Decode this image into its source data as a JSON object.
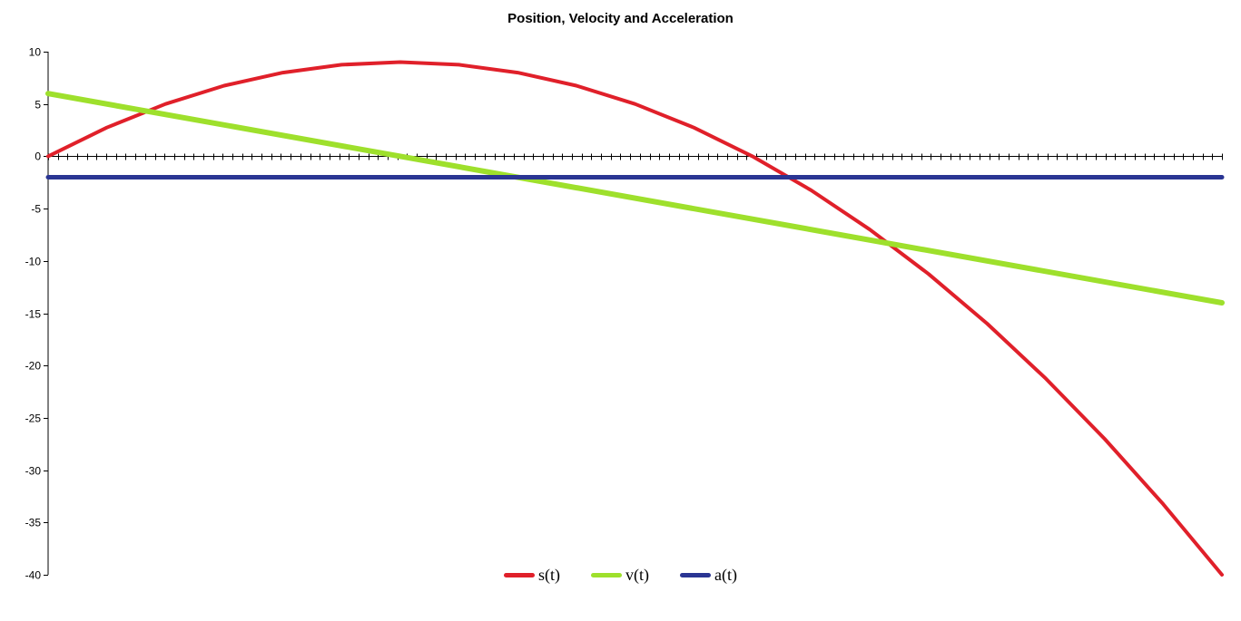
{
  "chart_data": {
    "type": "line",
    "title": "Position, Velocity and Acceleration",
    "xlabel": "",
    "ylabel": "",
    "ylim": [
      -40,
      10
    ],
    "yticks": [
      10,
      5,
      0,
      -5,
      -10,
      -15,
      -20,
      -25,
      -30,
      -35,
      -40
    ],
    "xlim": [
      0,
      10
    ],
    "grid": false,
    "legend_position": "bottom",
    "series": [
      {
        "name": "s(t)",
        "color": "#e0202a",
        "x": [
          0,
          0.5,
          1,
          1.5,
          2,
          2.5,
          3,
          3.5,
          4,
          4.5,
          5,
          5.5,
          6,
          6.5,
          7,
          7.5,
          8,
          8.5,
          9,
          9.5,
          10
        ],
        "y": [
          0,
          2.75,
          5,
          6.75,
          8,
          8.75,
          9,
          8.75,
          8,
          6.75,
          5,
          2.75,
          0,
          -3.25,
          -7,
          -11.25,
          -16,
          -21.25,
          -27,
          -33.25,
          -40
        ]
      },
      {
        "name": "v(t)",
        "color": "#9ee02c",
        "x": [
          0,
          10
        ],
        "y": [
          6,
          -14
        ]
      },
      {
        "name": "a(t)",
        "color": "#2a3593",
        "x": [
          0,
          10
        ],
        "y": [
          -2,
          -2
        ]
      }
    ]
  }
}
